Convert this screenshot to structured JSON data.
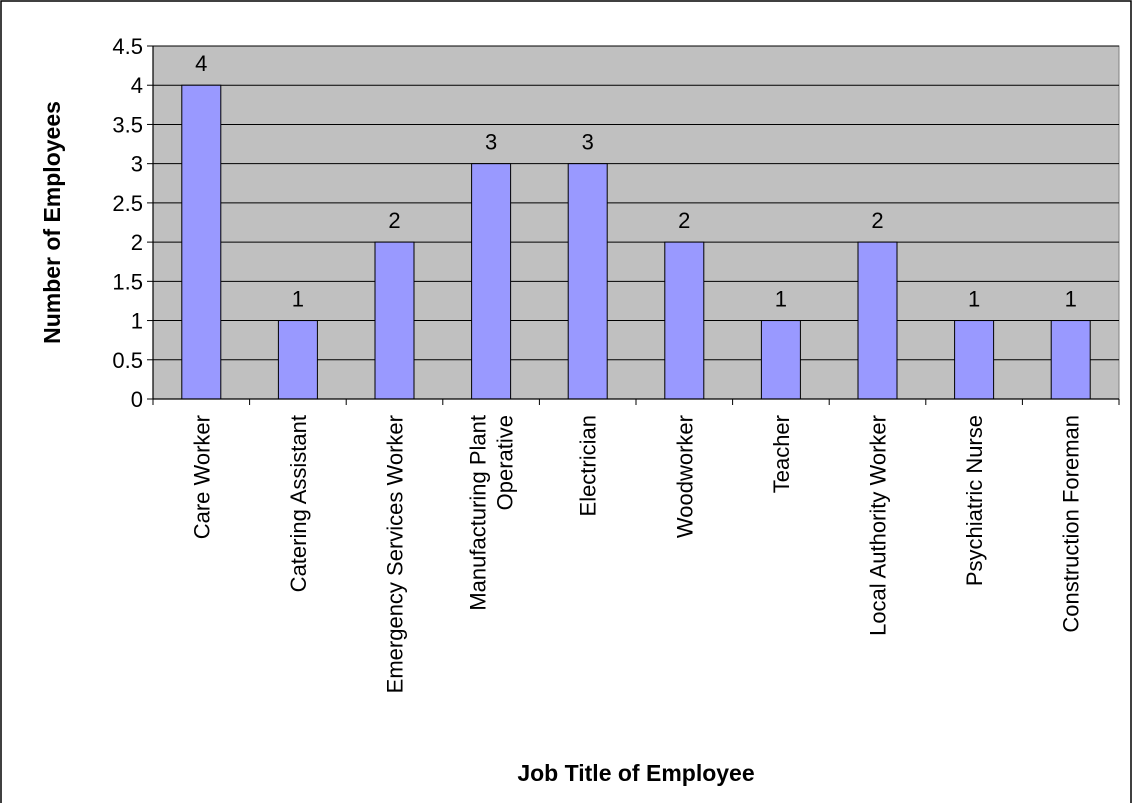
{
  "chart_data": {
    "type": "bar",
    "categories": [
      [
        "Care Worker"
      ],
      [
        "Catering Assistant"
      ],
      [
        "Emergency Services Worker"
      ],
      [
        "Manufacturing Plant",
        "Operative"
      ],
      [
        "Electrician"
      ],
      [
        "Woodworker"
      ],
      [
        "Teacher"
      ],
      [
        "Local Authority Worker"
      ],
      [
        "Psychiatric Nurse"
      ],
      [
        "Construction Foreman"
      ]
    ],
    "values": [
      4,
      1,
      2,
      3,
      3,
      2,
      1,
      2,
      1,
      1
    ],
    "data_labels": [
      "4",
      "1",
      "2",
      "3",
      "3",
      "2",
      "1",
      "2",
      "1",
      "1"
    ],
    "xlabel": "Job Title of Employee",
    "ylabel": "Number of Employees",
    "ylim": [
      0,
      4.5
    ],
    "yticks": [
      "0",
      "0.5",
      "1",
      "1.5",
      "2",
      "2.5",
      "3",
      "3.5",
      "4",
      "4.5"
    ],
    "grid": true,
    "legend": "none",
    "colors": {
      "bar_fill": "#9999ff",
      "plot_background": "#c0c0c0",
      "gridline": "#000000",
      "border": "#000000"
    }
  }
}
